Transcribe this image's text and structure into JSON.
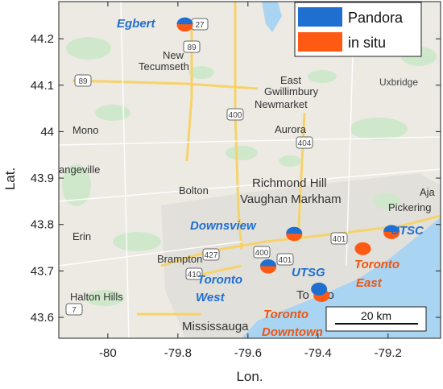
{
  "chart_data": {
    "type": "scatter",
    "xlabel": "Lon.",
    "ylabel": "Lat.",
    "xlim": [
      -80.14,
      -79.05
    ],
    "ylim": [
      43.555,
      44.28
    ],
    "xticks": [
      -80,
      -79.8,
      -79.6,
      -79.4,
      -79.2
    ],
    "xtick_labels": [
      "-80",
      "-79.8",
      "-79.6",
      "-79.4",
      "-79.2"
    ],
    "yticks": [
      43.6,
      43.7,
      43.8,
      43.9,
      44,
      44.1,
      44.2
    ],
    "ytick_labels": [
      "43.6",
      "43.7",
      "43.8",
      "43.9",
      "44",
      "44.1",
      "44.2"
    ],
    "legend": {
      "position": "top-right",
      "entries": [
        {
          "label": "Pandora",
          "color": "#1f6fd1"
        },
        {
          "label": "in situ",
          "color": "#ff5a14"
        }
      ]
    },
    "series": [
      {
        "name": "Pandora",
        "color": "#1f6fd1",
        "points": [
          {
            "site": "Egbert",
            "lon": -79.78,
            "lat": 44.232
          },
          {
            "site": "Downsview",
            "lon": -79.468,
            "lat": 43.781
          },
          {
            "site": "Toronto West",
            "lon": -79.542,
            "lat": 43.711
          },
          {
            "site": "UTSG",
            "lon": -79.397,
            "lat": 43.661
          },
          {
            "site": "UTSC",
            "lon": -79.19,
            "lat": 43.785
          }
        ]
      },
      {
        "name": "in situ",
        "color": "#ff5a14",
        "points": [
          {
            "site": "Egbert",
            "lon": -79.78,
            "lat": 44.232
          },
          {
            "site": "Downsview",
            "lon": -79.468,
            "lat": 43.781
          },
          {
            "site": "Toronto West",
            "lon": -79.542,
            "lat": 43.711
          },
          {
            "site": "Toronto East",
            "lon": -79.272,
            "lat": 43.748
          },
          {
            "site": "Toronto Downtown",
            "lon": -79.39,
            "lat": 43.647
          },
          {
            "site": "UTSC",
            "lon": -79.19,
            "lat": 43.785
          }
        ]
      }
    ],
    "site_labels": [
      {
        "lines": [
          "Egbert"
        ],
        "color": "blue"
      },
      {
        "lines": [
          "Downsview"
        ],
        "color": "blue"
      },
      {
        "lines": [
          "Toronto",
          "West"
        ],
        "color": "blue"
      },
      {
        "lines": [
          "UTSG"
        ],
        "color": "blue"
      },
      {
        "lines": [
          "UTSC"
        ],
        "color": "blue"
      },
      {
        "lines": [
          "Toronto",
          "East"
        ],
        "color": "orange"
      },
      {
        "lines": [
          "Toronto",
          "Downtown"
        ],
        "color": "orange"
      }
    ],
    "scale_bar": {
      "label": "20 km"
    }
  },
  "map": {
    "places": [
      "New",
      "Tecumseth",
      "East",
      "Gwillimbury",
      "Newmarket",
      "Uxbridge",
      "Mono",
      "Aurora",
      "angeville",
      "Bolton",
      "Richmond Hill",
      "Vaughan Markham",
      "Aja",
      "Pickering",
      "Erin",
      "Brampton",
      "Halton Hills",
      "Mississauga",
      "To",
      "nto"
    ],
    "shields": [
      "27",
      "89",
      "89",
      "400",
      "404",
      "400",
      "427",
      "401",
      "401",
      "410",
      "7"
    ]
  }
}
